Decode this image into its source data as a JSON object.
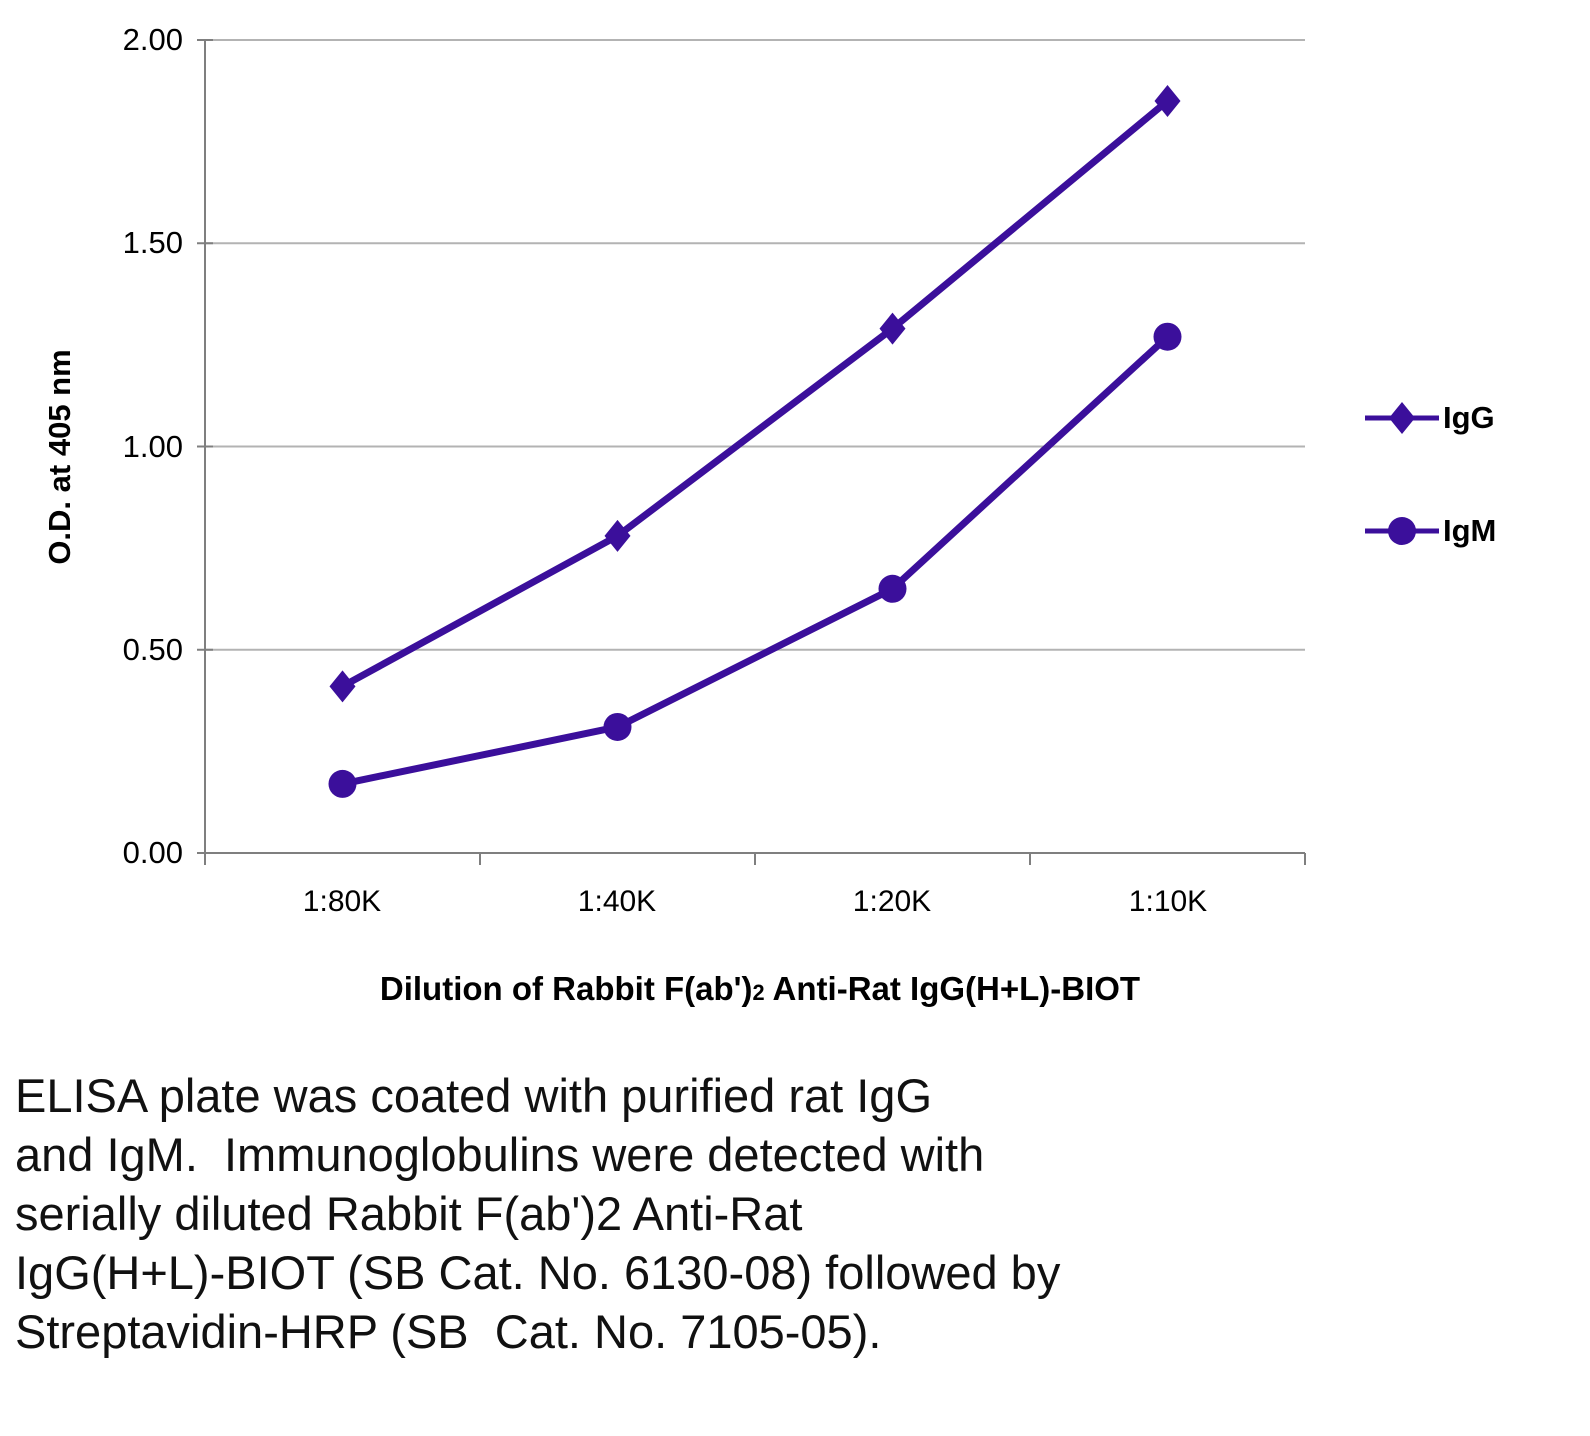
{
  "chart_data": {
    "type": "line",
    "categories": [
      "1:80K",
      "1:40K",
      "1:20K",
      "1:10K"
    ],
    "series": [
      {
        "name": "IgG",
        "marker": "diamond",
        "values": [
          0.41,
          0.78,
          1.29,
          1.85
        ]
      },
      {
        "name": "IgM",
        "marker": "circle",
        "values": [
          0.17,
          0.31,
          0.65,
          1.27
        ]
      }
    ],
    "ylabel": "O.D. at 405 nm",
    "xlabel_prefix": "Dilution of Rabbit F(ab')",
    "xlabel_sub": "2",
    "xlabel_suffix": " Anti-Rat IgG(H+L)-BIOT",
    "ylim": [
      0,
      2
    ],
    "y_ticks": [
      0,
      0.5,
      1,
      1.5,
      2
    ],
    "y_tick_labels": [
      "0.00",
      "0.50",
      "1.00",
      "1.50",
      "2.00"
    ],
    "grid": "horizontal",
    "legend_position": "right",
    "colors": {
      "series": "#3b0f9b",
      "grid": "#b3b3b3",
      "axis": "#7f7f7f"
    }
  },
  "caption": {
    "lines": [
      "ELISA plate was coated with purified rat IgG",
      "and IgM.  Immunoglobulins were detected with",
      "serially diluted Rabbit F(ab')2 Anti-Rat",
      "IgG(H+L)-BIOT (SB Cat. No. 6130-08) followed by",
      "Streptavidin-HRP (SB  Cat. No. 7105-05)."
    ]
  }
}
